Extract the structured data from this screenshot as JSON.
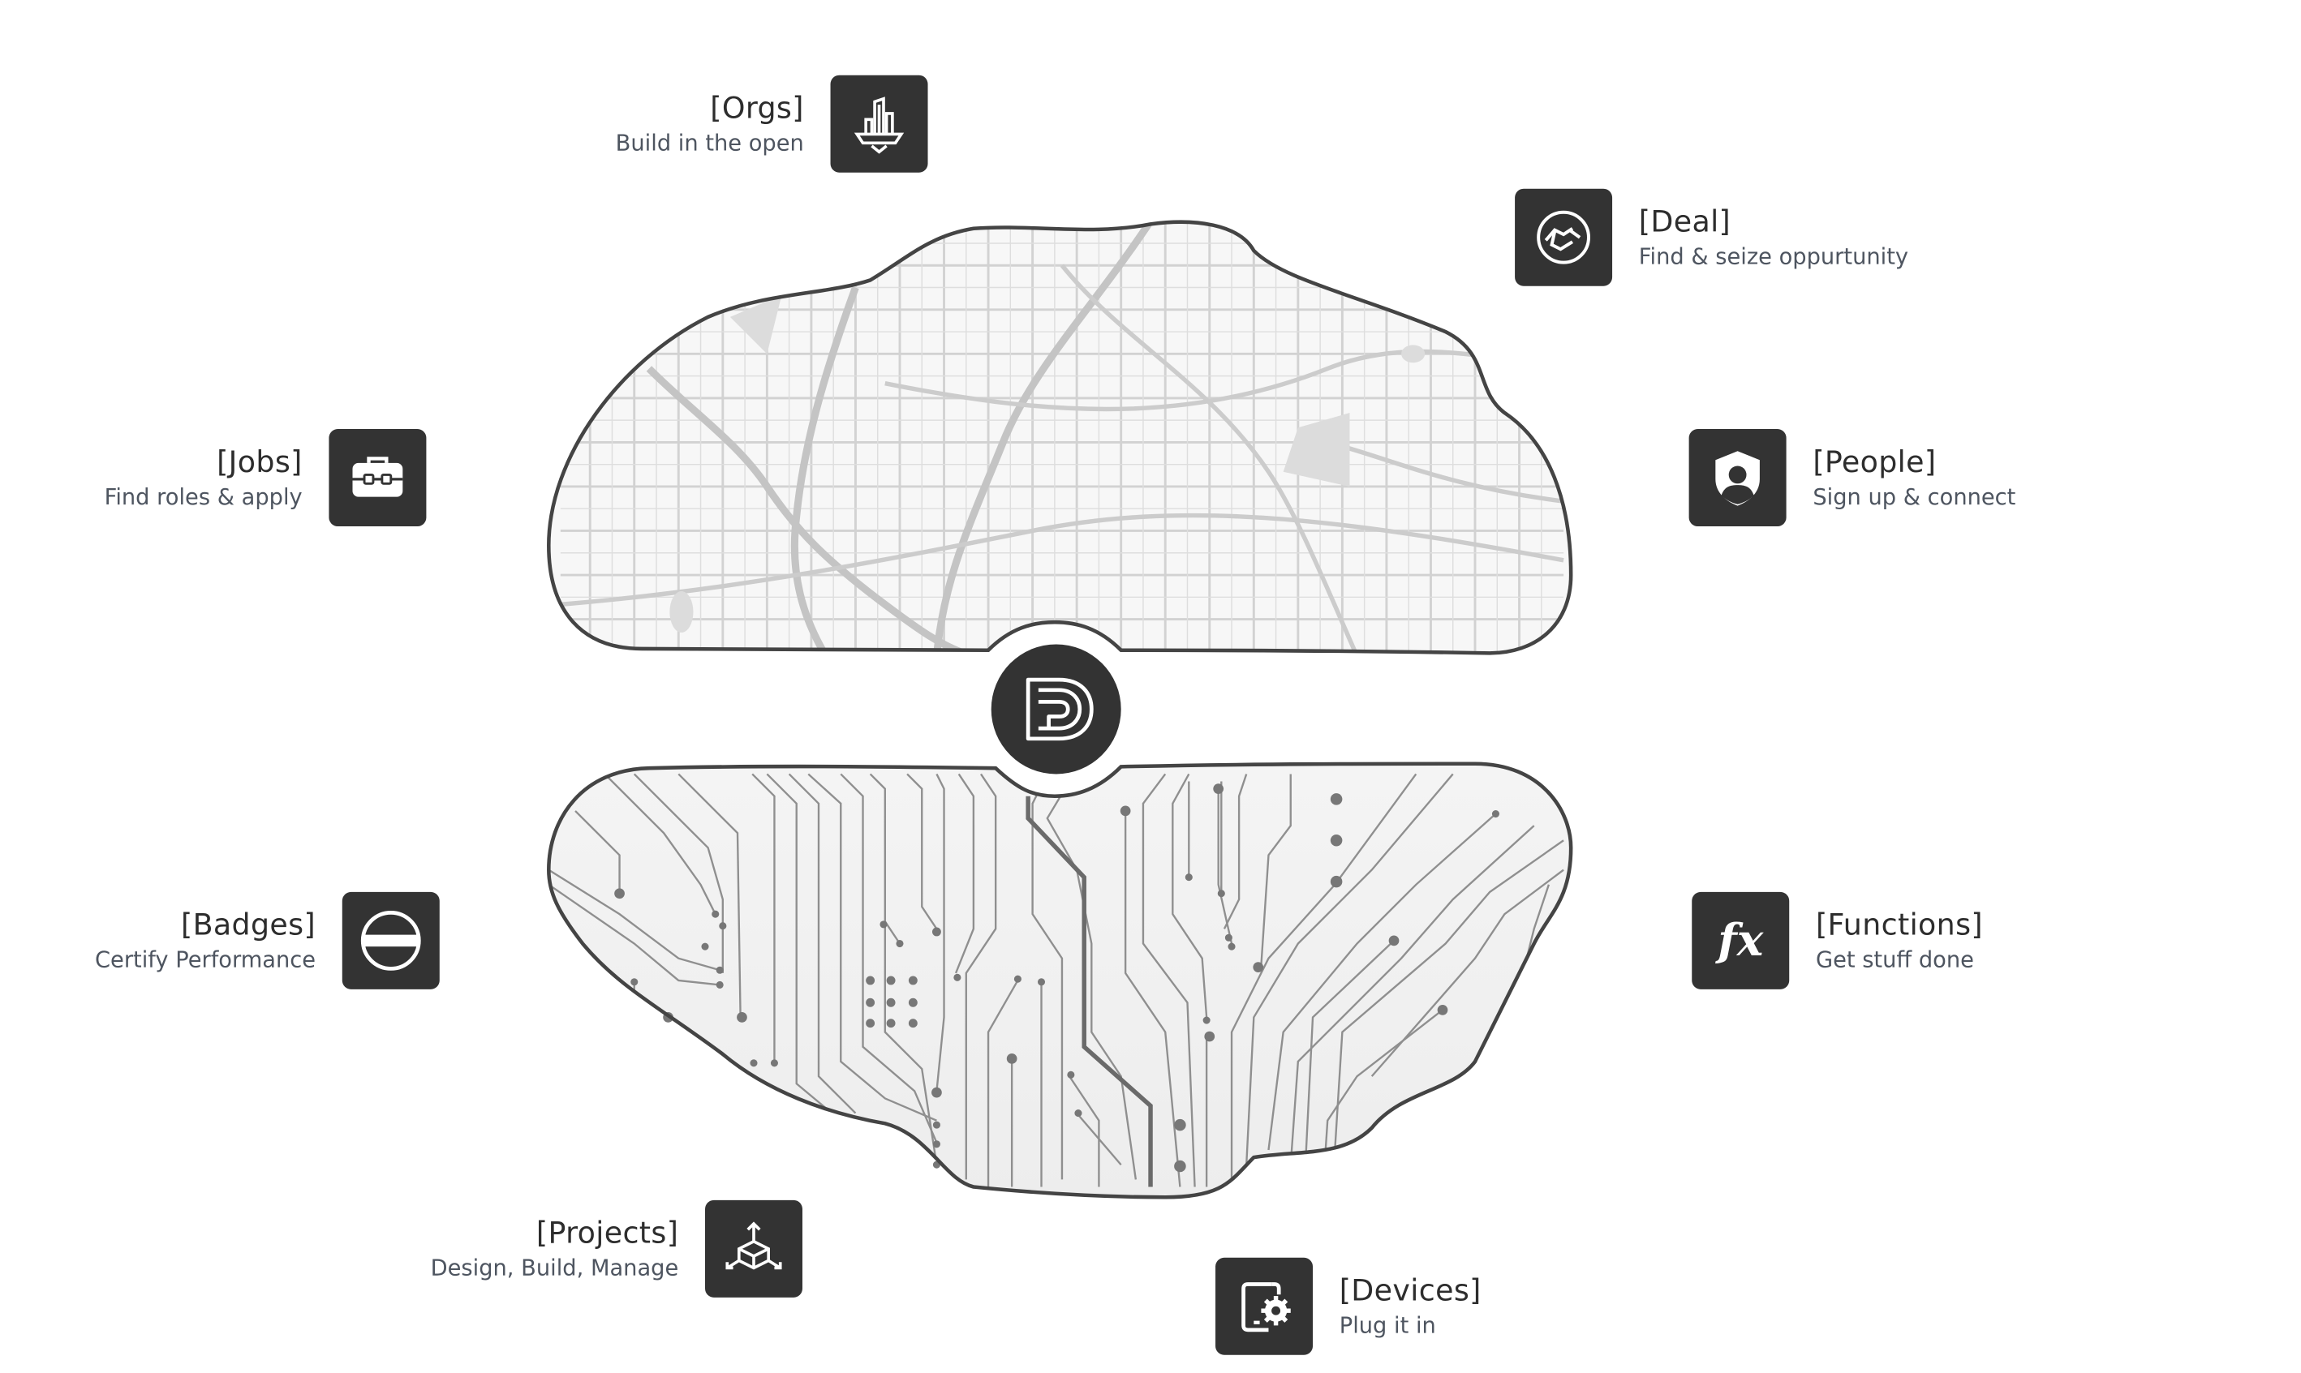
{
  "items": {
    "orgs": {
      "title": "[Orgs]",
      "subtitle": "Build in the open",
      "icon": "buildings-icon"
    },
    "deal": {
      "title": "[Deal]",
      "subtitle": "Find & seize oppurtunity",
      "icon": "handshake-icon"
    },
    "jobs": {
      "title": "[Jobs]",
      "subtitle": "Find roles & apply",
      "icon": "briefcase-icon"
    },
    "people": {
      "title": "[People]",
      "subtitle": "Sign up & connect",
      "icon": "user-shield-icon"
    },
    "badges": {
      "title": "[Badges]",
      "subtitle": "Certify Performance",
      "icon": "badge-icon"
    },
    "functions": {
      "title": "[Functions]",
      "subtitle": "Get stuff done",
      "icon": "function-icon",
      "glyph": "fx"
    },
    "projects": {
      "title": "[Projects]",
      "subtitle": "Design, Build, Manage",
      "icon": "cube-icon"
    },
    "devices": {
      "title": "[Devices]",
      "subtitle": "Plug it in",
      "icon": "device-settings-icon"
    }
  },
  "center": {
    "logo": "dp-logo-icon"
  },
  "colors": {
    "icon_bg": "#333333",
    "outline": "#444444",
    "map_lines": "#cfcfcf",
    "circuit_lines": "#8a8a8a"
  }
}
